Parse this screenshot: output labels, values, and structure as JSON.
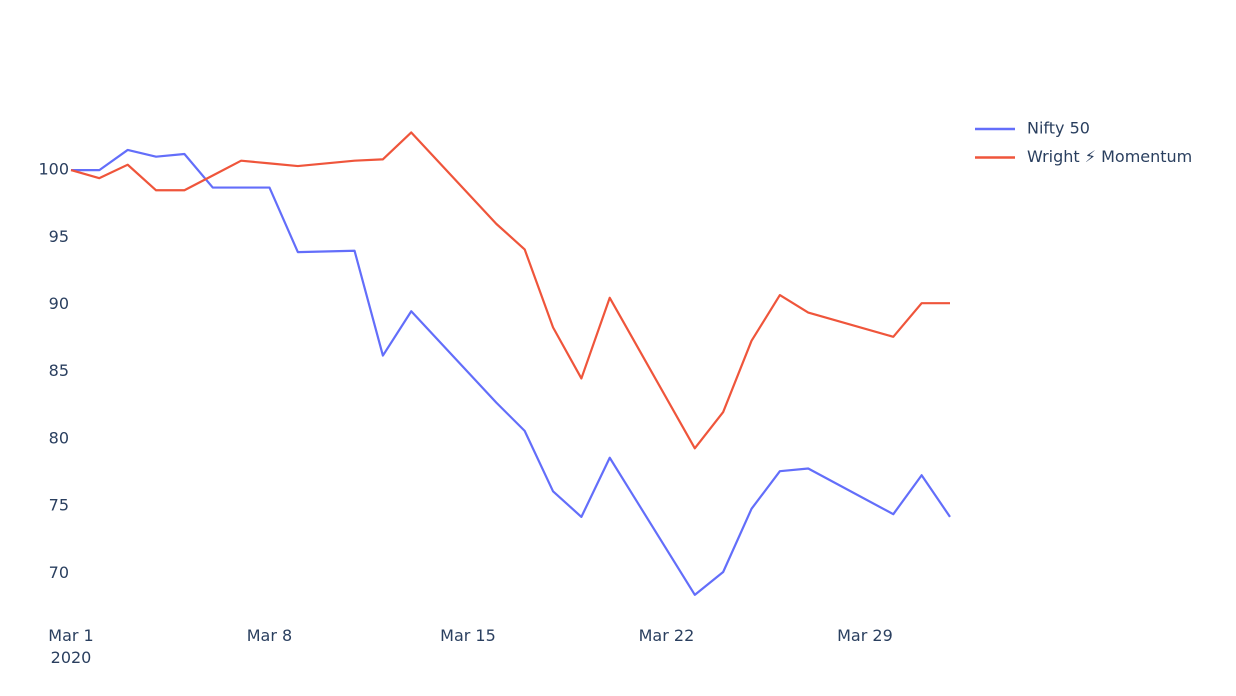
{
  "chart_data": {
    "type": "line",
    "x": [
      "2020-03-01",
      "2020-03-02",
      "2020-03-03",
      "2020-03-04",
      "2020-03-05",
      "2020-03-06",
      "2020-03-07",
      "2020-03-08",
      "2020-03-09",
      "2020-03-11",
      "2020-03-12",
      "2020-03-13",
      "2020-03-16",
      "2020-03-17",
      "2020-03-18",
      "2020-03-19",
      "2020-03-20",
      "2020-03-23",
      "2020-03-24",
      "2020-03-25",
      "2020-03-26",
      "2020-03-27",
      "2020-03-30",
      "2020-03-31",
      "2020-04-01"
    ],
    "series": [
      {
        "name": "Nifty 50",
        "color": "#636efa",
        "values": [
          100,
          100,
          101.5,
          101.0,
          101.2,
          98.7,
          98.7,
          98.7,
          93.9,
          94.0,
          86.2,
          89.5,
          82.7,
          80.6,
          76.1,
          74.2,
          78.6,
          68.4,
          70.1,
          74.8,
          77.6,
          77.8,
          74.4,
          77.3,
          74.2
        ]
      },
      {
        "name": "Wright ⚡ Momentum",
        "color": "#ef553b",
        "values": [
          100,
          99.4,
          100.4,
          98.5,
          98.5,
          99.6,
          100.7,
          100.5,
          100.3,
          100.7,
          100.8,
          102.8,
          96.0,
          94.1,
          88.3,
          84.5,
          90.5,
          79.3,
          82.0,
          87.3,
          90.7,
          89.4,
          87.6,
          90.1,
          90.1
        ]
      }
    ],
    "xlim": [
      "2020-03-01",
      "2020-04-01"
    ],
    "xticks": [
      {
        "value": "2020-03-01",
        "label": "Mar 1\n2020"
      },
      {
        "value": "2020-03-08",
        "label": "Mar 8"
      },
      {
        "value": "2020-03-15",
        "label": "Mar 15"
      },
      {
        "value": "2020-03-22",
        "label": "Mar 22"
      },
      {
        "value": "2020-03-29",
        "label": "Mar 29"
      }
    ],
    "ylim": [
      66.9,
      104.1
    ],
    "yticks": [
      70,
      75,
      80,
      85,
      90,
      95,
      100
    ],
    "grid": false,
    "legend": "right"
  }
}
